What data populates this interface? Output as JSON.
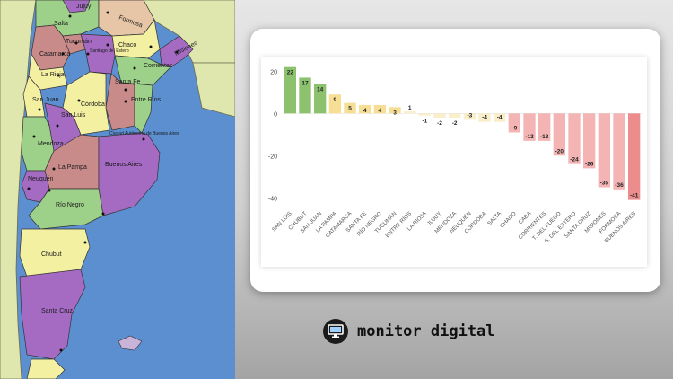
{
  "map": {
    "provinces": [
      "Salta",
      "Formosa",
      "Jujuy",
      "Tucumán",
      "Chaco",
      "Misiones",
      "Catamarca",
      "Santiago del Estero",
      "Corrientes",
      "La Rioja",
      "Santa Fe",
      "San Juan",
      "Córdoba",
      "Entre Ríos",
      "San Luis",
      "Ciudad Autónoma de Buenos Aires",
      "Mendoza",
      "La Pampa",
      "Buenos Aires",
      "Neuquén",
      "Río Negro",
      "Chubut",
      "Santa Cruz"
    ]
  },
  "chart_data": {
    "type": "bar",
    "title": "",
    "xlabel": "",
    "ylabel": "",
    "ylim": [
      -45,
      24
    ],
    "yticks": [
      20,
      0,
      -20,
      -40
    ],
    "grid": false,
    "categories": [
      "SAN LUIS",
      "CHUBUT",
      "SAN JUAN",
      "LA PAMPA",
      "CATAMARCA",
      "SANTA FE",
      "RÍO NEGRO",
      "TUCUMÁN",
      "ENTRE RÍOS",
      "LA RIOJA",
      "JUJUY",
      "MENDOZA",
      "NEUQUÉN",
      "CÓRDOBA",
      "SALTA",
      "CHACO",
      "CABA",
      "CORRIENTES",
      "T. DEL FUEGO",
      "S. DEL ESTERO",
      "SANTA CRUZ",
      "MISIONES",
      "FORMOSA",
      "BUENOS AIRES"
    ],
    "values": [
      22,
      17,
      14,
      9,
      5,
      4,
      4,
      3,
      1,
      -1,
      -2,
      -2,
      -3,
      -4,
      -4,
      -9,
      -13,
      -13,
      -20,
      -24,
      -26,
      -35,
      -36,
      -41
    ],
    "colors": {
      "high": "#8cc26e",
      "mid": "#f6de95",
      "neutral": "#fbeecb",
      "low": "#f4b4b4",
      "lowest": "#ec8c8c"
    }
  },
  "brand": {
    "text": "monitor digital",
    "icon": "monitor-icon"
  }
}
